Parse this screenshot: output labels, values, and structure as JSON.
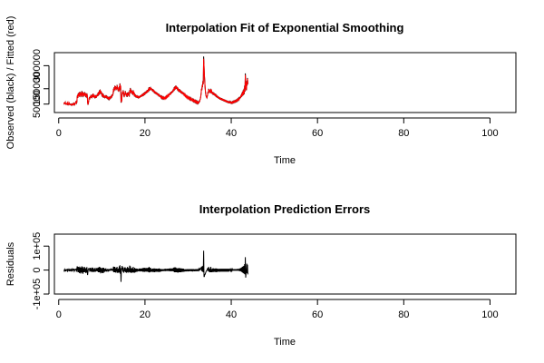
{
  "chart_data": [
    {
      "type": "line",
      "title": "Interpolation Fit of Exponential Smoothing",
      "xlabel": "Time",
      "ylabel": "Observed (black) / Fitted (red)",
      "xlim": [
        -1,
        106
      ],
      "ylim": [
        -5000,
        385000
      ],
      "x_ticks": [
        0,
        20,
        40,
        60,
        80,
        100
      ],
      "x_tick_labels": [
        "0",
        "20",
        "40",
        "60",
        "80",
        "100"
      ],
      "y_ticks": [
        50000,
        150000,
        300000
      ],
      "y_tick_labels": [
        "50000",
        "150000",
        "300000"
      ],
      "x_start": 1.2,
      "x_step": 0.0833,
      "series": [
        {
          "role": "observed",
          "color": "#000000",
          "values": [
            60000,
            52000,
            58000,
            55000,
            62000,
            50000,
            48000,
            52000,
            54000,
            49000,
            60000,
            50000,
            45000,
            48000,
            62000,
            55000,
            47000,
            50000,
            46000,
            49000,
            44000,
            48000,
            43000,
            50000,
            46000,
            45000,
            52000,
            47000,
            60000,
            49000,
            45000,
            50000,
            58000,
            62000,
            70000,
            55000,
            60000,
            95000,
            110000,
            90000,
            120000,
            100000,
            125000,
            98000,
            130000,
            105000,
            128000,
            95000,
            120000,
            100000,
            135000,
            110000,
            130000,
            95000,
            125000,
            105000,
            120000,
            100000,
            128000,
            110000,
            122000,
            95000,
            115000,
            92000,
            120000,
            108000,
            62000,
            45000,
            55000,
            70000,
            85000,
            95000,
            80000,
            100000,
            90000,
            110000,
            95000,
            105000,
            88000,
            112000,
            96000,
            118000,
            100000,
            108000,
            92000,
            104000,
            88000,
            110000,
            95000,
            100000,
            90000,
            108000,
            98000,
            115000,
            102000,
            125000,
            105000,
            130000,
            110000,
            140000,
            120000,
            145000,
            115000,
            135000,
            118000,
            128000,
            100000,
            120000,
            96000,
            118000,
            90000,
            110000,
            95000,
            105000,
            88000,
            102000,
            92000,
            108000,
            96000,
            100000,
            85000,
            95000,
            88000,
            98000,
            84000,
            90000,
            82000,
            92000,
            86000,
            95000,
            90000,
            98000,
            94000,
            105000,
            100000,
            110000,
            108000,
            118000,
            150000,
            130000,
            160000,
            140000,
            170000,
            150000,
            165000,
            140000,
            160000,
            145000,
            175000,
            150000,
            160000,
            135000,
            150000,
            130000,
            165000,
            140000,
            185000,
            150000,
            170000,
            60000,
            65000,
            72000,
            110000,
            130000,
            115000,
            140000,
            125000,
            105000,
            95000,
            120000,
            110000,
            135000,
            115000,
            125000,
            100000,
            118000,
            96000,
            125000,
            108000,
            128000,
            104000,
            115000,
            98000,
            140000,
            120000,
            155000,
            130000,
            145000,
            120000,
            138000,
            115000,
            132000,
            110000,
            140000,
            118000,
            125000,
            100000,
            120000,
            98000,
            112000,
            94000,
            108000,
            92000,
            105000,
            90000,
            102000,
            94000,
            98000,
            86000,
            100000,
            90000,
            104000,
            92000,
            106000,
            96000,
            110000,
            98000,
            112000,
            100000,
            118000,
            102000,
            120000,
            105000,
            125000,
            108000,
            128000,
            112000,
            130000,
            118000,
            135000,
            120000,
            140000,
            125000,
            142000,
            128000,
            150000,
            130000,
            160000,
            138000,
            158000,
            140000,
            162000,
            145000,
            155000,
            140000,
            150000,
            135000,
            148000,
            130000,
            145000,
            128000,
            140000,
            120000,
            135000,
            118000,
            130000,
            115000,
            128000,
            112000,
            125000,
            110000,
            120000,
            105000,
            118000,
            100000,
            115000,
            98000,
            110000,
            95000,
            105000,
            92000,
            100000,
            90000,
            98000,
            88000,
            95000,
            86000,
            94000,
            85000,
            92000,
            84000,
            96000,
            86000,
            98000,
            90000,
            100000,
            92000,
            104000,
            96000,
            108000,
            100000,
            112000,
            104000,
            118000,
            108000,
            122000,
            112000,
            128000,
            118000,
            130000,
            120000,
            135000,
            125000,
            140000,
            130000,
            150000,
            135000,
            160000,
            140000,
            165000,
            145000,
            170000,
            150000,
            168000,
            148000,
            162000,
            140000,
            158000,
            135000,
            150000,
            130000,
            148000,
            128000,
            145000,
            125000,
            140000,
            120000,
            135000,
            118000,
            132000,
            115000,
            128000,
            112000,
            125000,
            110000,
            118000,
            105000,
            112000,
            100000,
            108000,
            96000,
            104000,
            92000,
            100000,
            90000,
            98000,
            86000,
            95000,
            84000,
            92000,
            82000,
            90000,
            80000,
            88000,
            78000,
            86000,
            75000,
            85000,
            72000,
            80000,
            70000,
            78000,
            68000,
            76000,
            65000,
            72000,
            62000,
            70000,
            60000,
            68000,
            58000,
            66000,
            56000,
            64000,
            55000,
            62000,
            60000,
            70000,
            68000,
            80000,
            85000,
            100000,
            120000,
            150000,
            140000,
            175000,
            160000,
            200000,
            180000,
            360000,
            300000,
            240000,
            200000,
            160000,
            130000,
            110000,
            100000,
            95000,
            90000,
            100000,
            110000,
            130000,
            120000,
            150000,
            135000,
            145000,
            125000,
            140000,
            120000,
            150000,
            130000,
            138000,
            118000,
            130000,
            112000,
            128000,
            110000,
            125000,
            108000,
            120000,
            104000,
            118000,
            100000,
            115000,
            96000,
            110000,
            92000,
            105000,
            90000,
            100000,
            86000,
            98000,
            84000,
            95000,
            80000,
            92000,
            78000,
            90000,
            76000,
            88000,
            74000,
            86000,
            72000,
            84000,
            70000,
            82000,
            68000,
            80000,
            66000,
            78000,
            64000,
            76000,
            62000,
            74000,
            60000,
            72000,
            58000,
            70000,
            56000,
            68000,
            55000,
            66000,
            60000,
            65000,
            58000,
            63000,
            56000,
            62000,
            57000,
            64000,
            58000,
            66000,
            60000,
            68000,
            62000,
            70000,
            64000,
            72000,
            66000,
            74000,
            68000,
            76000,
            70000,
            80000,
            74000,
            84000,
            78000,
            88000,
            80000,
            95000,
            85000,
            100000,
            90000,
            110000,
            95000,
            120000,
            100000,
            130000,
            105000,
            140000,
            110000,
            150000,
            115000,
            170000,
            130000,
            250000,
            180000,
            150000,
            140000,
            200000,
            170000,
            220000,
            180000
          ]
        },
        {
          "role": "fitted",
          "color": "#ff0000",
          "values": []
        }
      ]
    },
    {
      "type": "line",
      "title": "Interpolation Prediction Errors",
      "xlabel": "Time",
      "ylabel": "Residuals",
      "xlim": [
        -1,
        106
      ],
      "ylim": [
        -100000,
        150000
      ],
      "x_ticks": [
        0,
        20,
        40,
        60,
        80,
        100
      ],
      "x_tick_labels": [
        "0",
        "20",
        "40",
        "60",
        "80",
        "100"
      ],
      "y_ticks": [
        -100000,
        0,
        100000
      ],
      "y_tick_labels": [
        "-1e+05",
        "0",
        "1e+05"
      ],
      "x_start": 1.2,
      "x_step": 0.0833,
      "series": [
        {
          "role": "residuals",
          "color": "#000000",
          "values": []
        }
      ]
    }
  ]
}
